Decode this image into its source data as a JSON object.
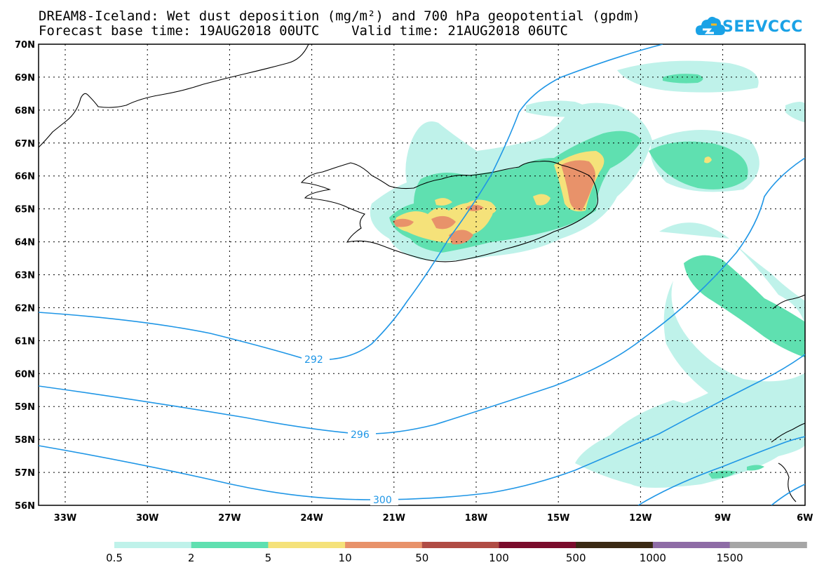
{
  "header": {
    "title_line1": "DREAM8-Iceland: Wet dust deposition (mg/m²) and 700 hPa geopotential (gpdm)",
    "title_line2": "Forecast base time: 19AUG2018 00UTC    Valid time: 21AUG2018 06UTC",
    "logo_text": "SEEVCCC"
  },
  "map": {
    "lat_labels": [
      "70N",
      "69N",
      "68N",
      "67N",
      "66N",
      "65N",
      "64N",
      "63N",
      "62N",
      "61N",
      "60N",
      "59N",
      "58N",
      "57N",
      "56N"
    ],
    "lon_labels": [
      "33W",
      "30W",
      "27W",
      "24W",
      "21W",
      "18W",
      "15W",
      "12W",
      "9W",
      "6W"
    ],
    "contour_labels": [
      "292",
      "296",
      "300"
    ],
    "colors": {
      "contour": "#1f96e6",
      "coast": "#000000"
    }
  },
  "colorbar": {
    "labels": [
      "0.5",
      "2",
      "5",
      "10",
      "50",
      "100",
      "500",
      "1000",
      "1500"
    ],
    "colors": [
      "#bff2ea",
      "#5fe0b0",
      "#f5e27a",
      "#e8926a",
      "#b04c44",
      "#7a0c2c",
      "#3a2a14",
      "#8e6ca6",
      "#a6a6a6"
    ]
  }
}
